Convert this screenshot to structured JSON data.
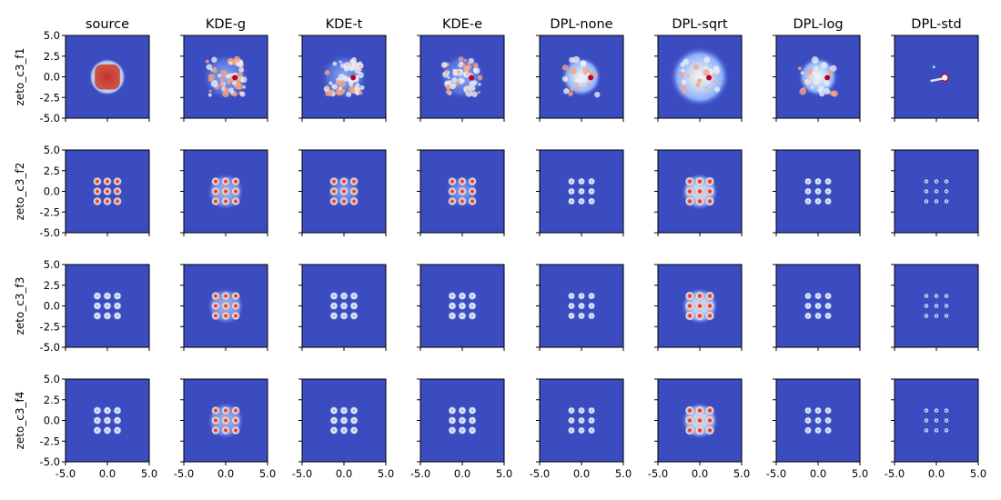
{
  "chart_data": {
    "type": "heatmap",
    "description_kind": "grid of 2D density heatmaps",
    "colormap": "coolwarm",
    "background_color": "#3b4cc0",
    "columns": [
      "source",
      "KDE-g",
      "KDE-t",
      "KDE-e",
      "DPL-none",
      "DPL-sqrt",
      "DPL-log",
      "DPL-std"
    ],
    "rows": [
      "zeto_c3_f1",
      "zeto_c3_f2",
      "zeto_c3_f3",
      "zeto_c3_f4"
    ],
    "xlim": [
      -5.0,
      5.0
    ],
    "ylim": [
      -5.0,
      5.0
    ],
    "x_ticks": [
      -5.0,
      0.0,
      5.0
    ],
    "x_tick_labels": [
      "-5.0",
      "0.0",
      "5.0"
    ],
    "y_ticks": [
      5.0,
      2.5,
      0.0,
      -2.5,
      -5.0
    ],
    "y_tick_labels": [
      "5.0",
      "2.5",
      "0.0",
      "-2.5",
      "-5.0"
    ],
    "x_ticklabels_shown_on": "bottom row only",
    "y_ticklabels_shown_on": "first column only",
    "grid": false,
    "cluster_centers": [
      -1.2,
      0.0,
      1.2
    ]
  }
}
